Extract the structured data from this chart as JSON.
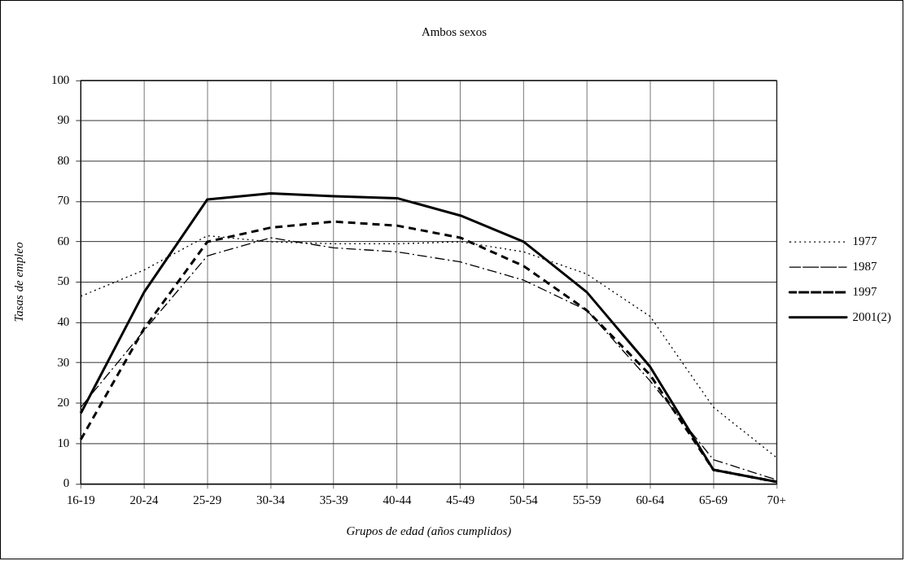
{
  "chart_data": {
    "type": "line",
    "title": "Ambos sexos",
    "xlabel": "Grupos de edad (años cumplidos)",
    "ylabel": "Tasas de empleo",
    "categories": [
      "16-19",
      "20-24",
      "25-29",
      "30-34",
      "35-39",
      "40-44",
      "45-49",
      "50-54",
      "55-59",
      "60-64",
      "65-69",
      "70+"
    ],
    "series": [
      {
        "name": "1977",
        "color": "#000000",
        "line_style": "dotted",
        "values": [
          46.5,
          53,
          61.5,
          60,
          59.5,
          59.5,
          60,
          57.5,
          52,
          41.5,
          19,
          6.5
        ]
      },
      {
        "name": "1987",
        "color": "#000000",
        "line_style": "dashdot",
        "values": [
          19,
          38,
          56.5,
          61,
          58.5,
          57.5,
          55,
          50.5,
          43,
          25.5,
          6,
          1
        ]
      },
      {
        "name": "1997",
        "color": "#000000",
        "line_style": "dashed",
        "values": [
          11,
          38.5,
          60,
          63.5,
          65,
          64,
          61,
          54,
          43,
          27,
          3.5,
          0.5
        ]
      },
      {
        "name": "2001(2)",
        "color": "#000000",
        "line_style": "solid",
        "values": [
          17.5,
          47.5,
          70.5,
          72,
          71.3,
          70.8,
          66.5,
          60,
          47.5,
          29,
          3.5,
          0.5
        ]
      }
    ],
    "ylim": [
      0,
      100
    ],
    "yticks": [
      0,
      10,
      20,
      30,
      40,
      50,
      60,
      70,
      80,
      90,
      100
    ],
    "grid": true,
    "legend": "right",
    "marker": "none"
  }
}
